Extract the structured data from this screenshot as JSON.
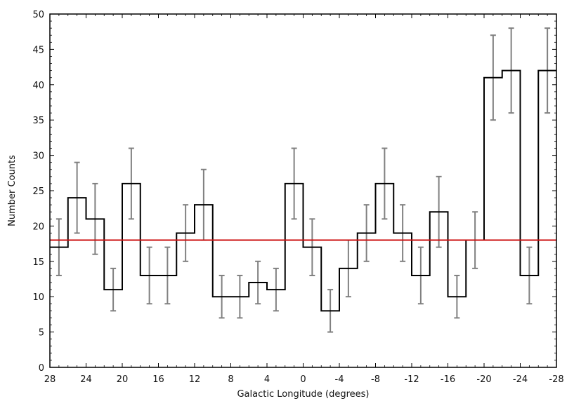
{
  "chart_data": {
    "type": "histogram",
    "title": "",
    "xlabel": "Galactic Longitude (degrees)",
    "ylabel": "Number Counts",
    "xlim": [
      28,
      -28
    ],
    "ylim": [
      0,
      50
    ],
    "x_ticks": [
      28,
      24,
      20,
      16,
      12,
      8,
      4,
      0,
      -4,
      -8,
      -12,
      -16,
      -20,
      -24,
      -28
    ],
    "y_ticks": [
      0,
      5,
      10,
      15,
      20,
      25,
      30,
      35,
      40,
      45,
      50
    ],
    "bin_edges": [
      28,
      26,
      24,
      22,
      20,
      18,
      16,
      14,
      12,
      10,
      8,
      6,
      4,
      2,
      0,
      -2,
      -4,
      -6,
      -8,
      -10,
      -12,
      -14,
      -16,
      -18,
      -20,
      -22,
      -24,
      -26,
      -28
    ],
    "bins": [
      {
        "center": 27,
        "count": 17,
        "err_low": 13,
        "err_high": 21
      },
      {
        "center": 25,
        "count": 24,
        "err_low": 19,
        "err_high": 29
      },
      {
        "center": 23,
        "count": 21,
        "err_low": 16,
        "err_high": 26
      },
      {
        "center": 21,
        "count": 11,
        "err_low": 8,
        "err_high": 14
      },
      {
        "center": 19,
        "count": 26,
        "err_low": 21,
        "err_high": 31
      },
      {
        "center": 17,
        "count": 13,
        "err_low": 9,
        "err_high": 17
      },
      {
        "center": 15,
        "count": 13,
        "err_low": 9,
        "err_high": 17
      },
      {
        "center": 13,
        "count": 19,
        "err_low": 15,
        "err_high": 23
      },
      {
        "center": 11,
        "count": 23,
        "err_low": 18,
        "err_high": 28
      },
      {
        "center": 9,
        "count": 10,
        "err_low": 7,
        "err_high": 13
      },
      {
        "center": 7,
        "count": 10,
        "err_low": 7,
        "err_high": 13
      },
      {
        "center": 5,
        "count": 12,
        "err_low": 9,
        "err_high": 15
      },
      {
        "center": 3,
        "count": 11,
        "err_low": 8,
        "err_high": 14
      },
      {
        "center": 1,
        "count": 26,
        "err_low": 21,
        "err_high": 31
      },
      {
        "center": -1,
        "count": 17,
        "err_low": 13,
        "err_high": 21
      },
      {
        "center": -3,
        "count": 8,
        "err_low": 5,
        "err_high": 11
      },
      {
        "center": -5,
        "count": 14,
        "err_low": 10,
        "err_high": 18
      },
      {
        "center": -7,
        "count": 19,
        "err_low": 15,
        "err_high": 23
      },
      {
        "center": -9,
        "count": 26,
        "err_low": 21,
        "err_high": 31
      },
      {
        "center": -11,
        "count": 19,
        "err_low": 15,
        "err_high": 23
      },
      {
        "center": -13,
        "count": 13,
        "err_low": 9,
        "err_high": 17
      },
      {
        "center": -15,
        "count": 22,
        "err_low": 17,
        "err_high": 27
      },
      {
        "center": -17,
        "count": 10,
        "err_low": 7,
        "err_high": 13
      },
      {
        "center": -19,
        "count": 18,
        "err_low": 14,
        "err_high": 22
      },
      {
        "center": -21,
        "count": 41,
        "err_low": 35,
        "err_high": 47
      },
      {
        "center": -23,
        "count": 42,
        "err_low": 36,
        "err_high": 48
      },
      {
        "center": -25,
        "count": 13,
        "err_low": 9,
        "err_high": 17
      },
      {
        "center": -27,
        "count": 42,
        "err_low": 36,
        "err_high": 48
      }
    ],
    "mean_line": {
      "y": 18,
      "color": "#cc1111"
    },
    "colors": {
      "histogram": "#000000",
      "error_bars": "#808080",
      "axes": "#000000"
    },
    "grid": false,
    "legend": "none"
  }
}
